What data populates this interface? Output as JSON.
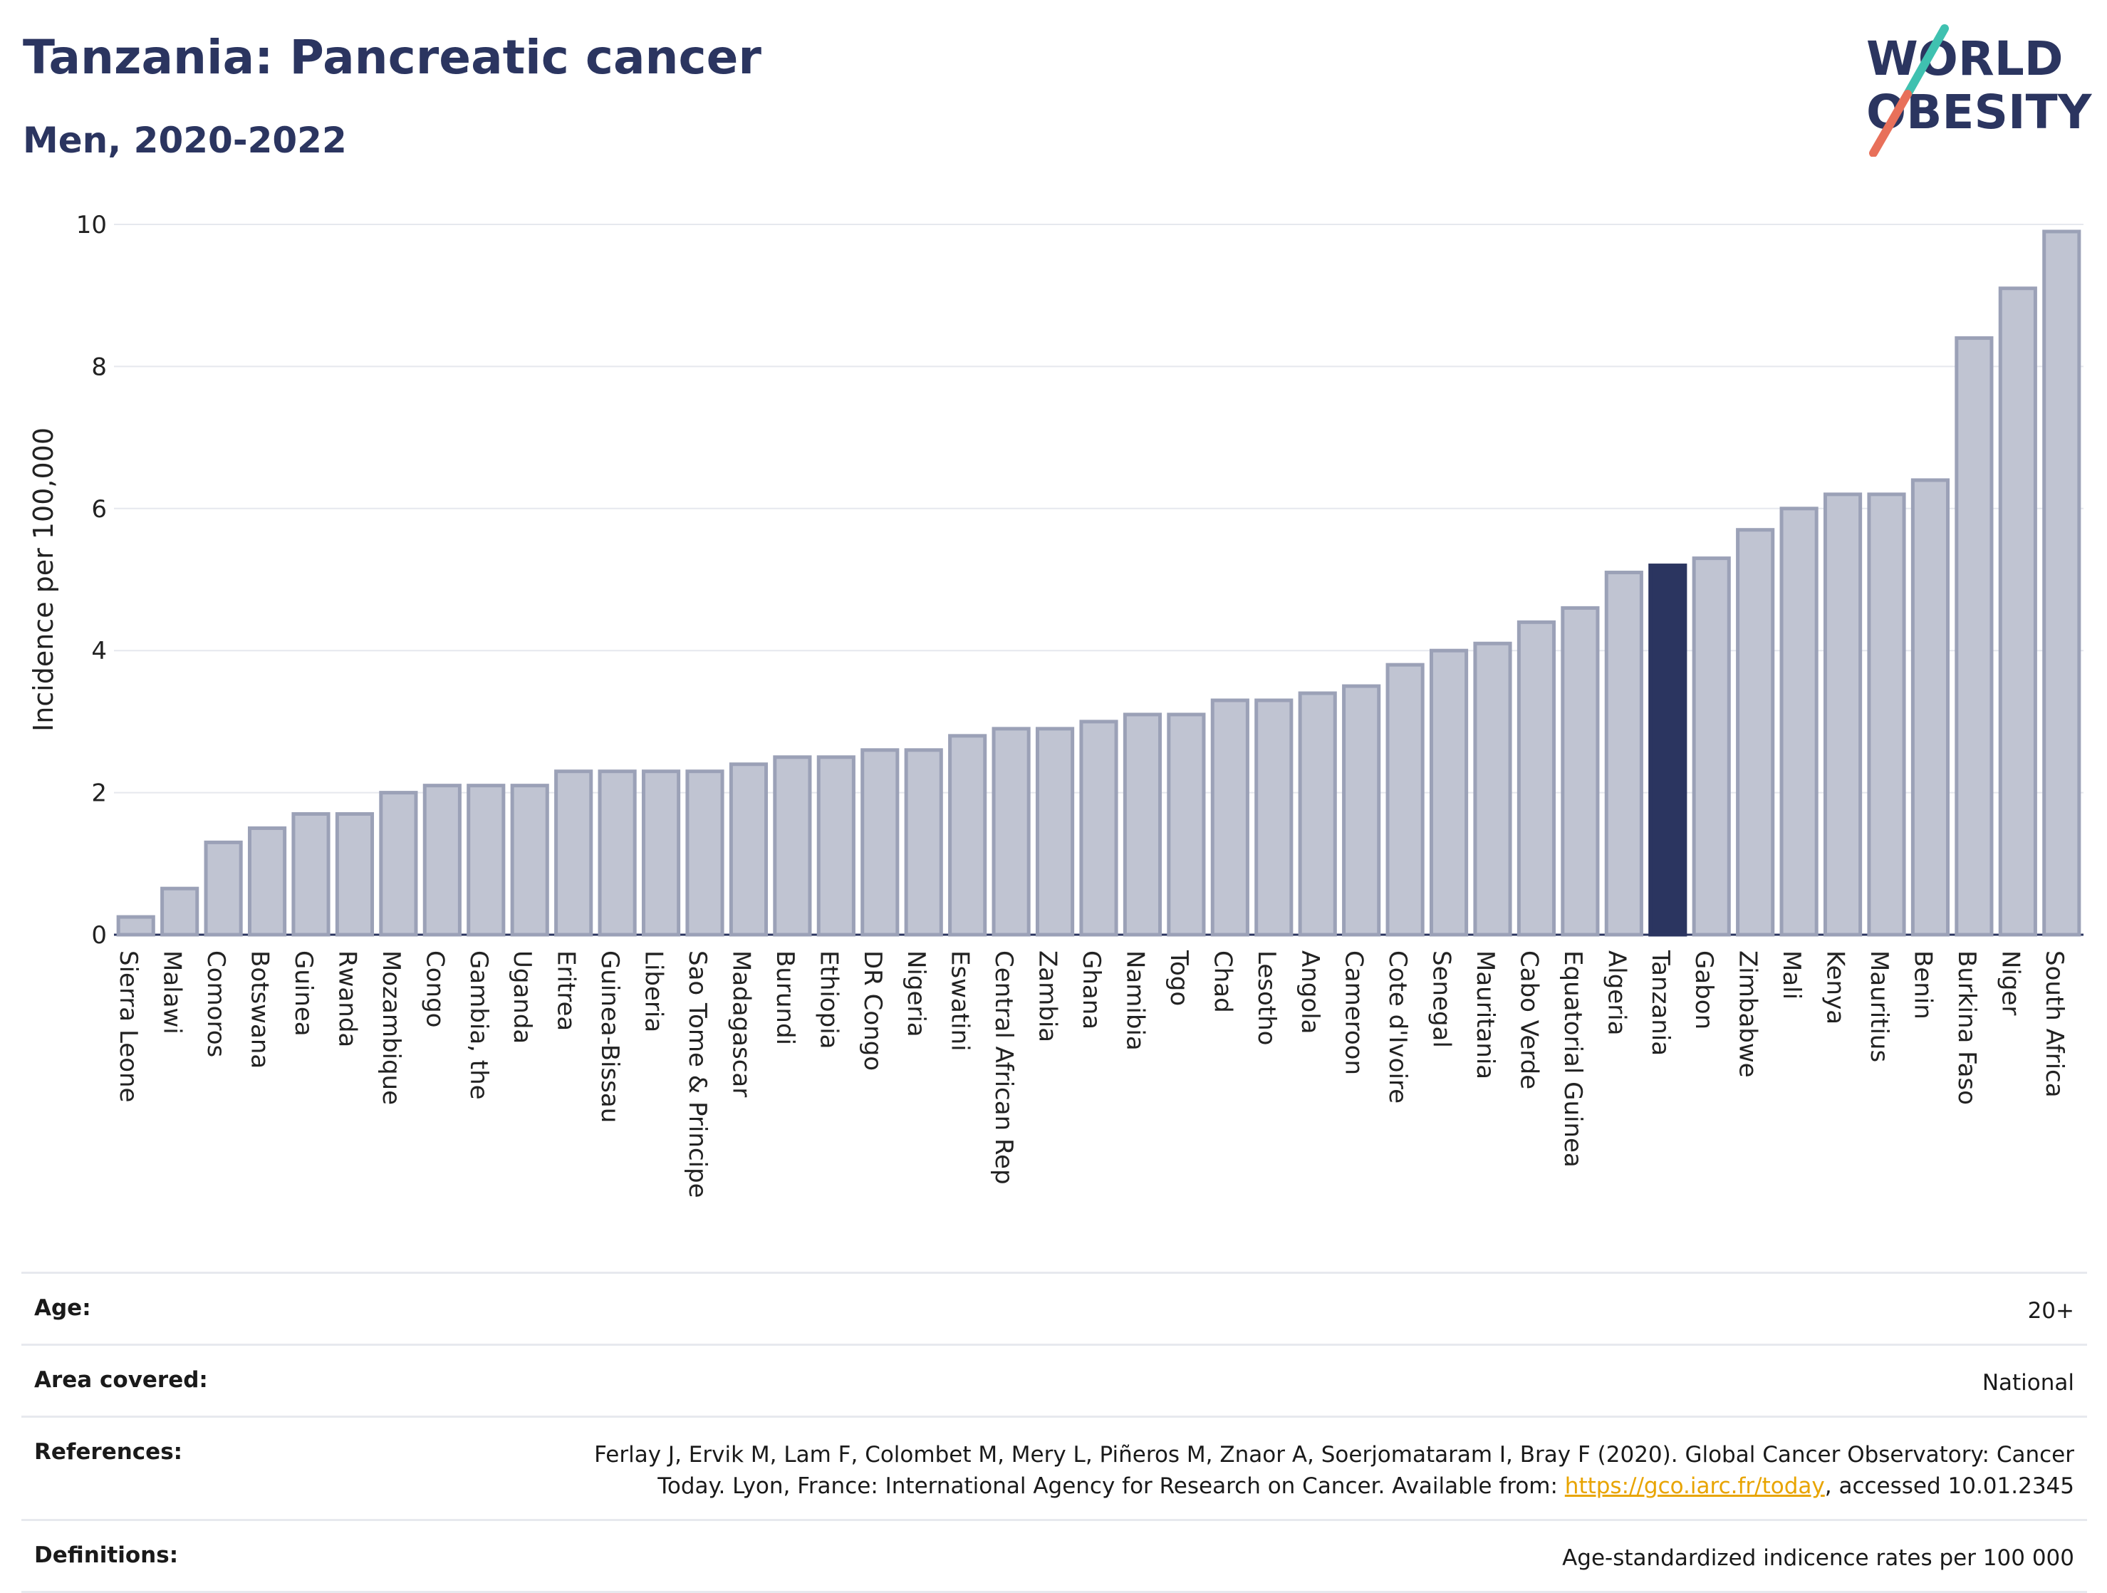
{
  "header": {
    "title": "Tanzania: Pancreatic cancer",
    "subtitle": "Men, 2020-2022"
  },
  "logo": {
    "line1": "WORLD",
    "line2": "OBESITY"
  },
  "chart_data": {
    "type": "bar",
    "ylabel": "Incidence per 100,000",
    "ylim": [
      0,
      10
    ],
    "yticks": [
      0,
      2,
      4,
      6,
      8,
      10
    ],
    "grid": true,
    "highlight": "Tanzania",
    "colors": {
      "bar": "#c0c4d2",
      "bar_edge": "#9ba1b7",
      "highlight": "#2b3560"
    },
    "categories": [
      "Sierra Leone",
      "Malawi",
      "Comoros",
      "Botswana",
      "Guinea",
      "Rwanda",
      "Mozambique",
      "Congo",
      "Gambia, the",
      "Uganda",
      "Eritrea",
      "Guinea-Bissau",
      "Liberia",
      "Sao Tome & Principe",
      "Madagascar",
      "Burundi",
      "Ethiopia",
      "DR Congo",
      "Nigeria",
      "Eswatini",
      "Central African Rep",
      "Zambia",
      "Ghana",
      "Namibia",
      "Togo",
      "Chad",
      "Lesotho",
      "Angola",
      "Cameroon",
      "Cote d'Ivoire",
      "Senegal",
      "Mauritania",
      "Cabo Verde",
      "Equatorial Guinea",
      "Algeria",
      "Tanzania",
      "Gabon",
      "Zimbabwe",
      "Mali",
      "Kenya",
      "Mauritius",
      "Benin",
      "Burkina Faso",
      "Niger",
      "South Africa"
    ],
    "values": [
      0.25,
      0.65,
      1.3,
      1.5,
      1.7,
      1.7,
      2.0,
      2.1,
      2.1,
      2.1,
      2.3,
      2.3,
      2.3,
      2.3,
      2.4,
      2.5,
      2.5,
      2.6,
      2.6,
      2.8,
      2.9,
      2.9,
      3.0,
      3.1,
      3.1,
      3.3,
      3.3,
      3.4,
      3.5,
      3.8,
      4.0,
      4.1,
      4.4,
      4.6,
      5.1,
      5.2,
      5.3,
      5.7,
      6.0,
      6.2,
      6.2,
      6.4,
      8.4,
      9.1,
      9.9
    ]
  },
  "meta": {
    "age_label": "Age:",
    "age_value": "20+",
    "area_label": "Area covered:",
    "area_value": "National",
    "references_label": "References:",
    "references_text_1": "Ferlay J, Ervik M, Lam F, Colombet M, Mery L, Piñeros M, Znaor A, Soerjomataram I, Bray F (2020). Global Cancer Observatory: Cancer",
    "references_text_2": "Today. Lyon, France: International Agency for Research on Cancer. Available from: ",
    "references_link": "https://gco.iarc.fr/today",
    "references_text_3": ", accessed 10.01.2345",
    "definitions_label": "Definitions:",
    "definitions_value": "Age-standardized indicence rates per 100 000"
  }
}
